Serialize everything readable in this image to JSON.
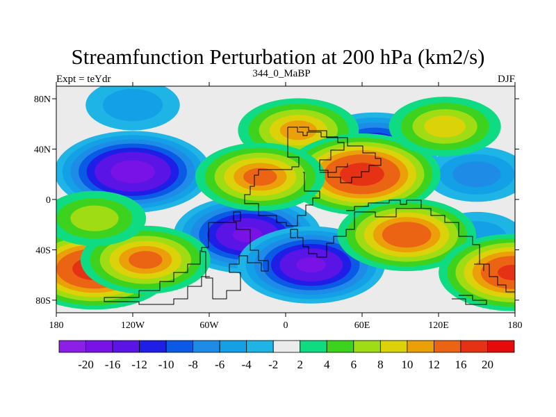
{
  "chart_data": {
    "type": "heatmap",
    "title": "Streamfunction Perturbation at 200 hPa (km2/s)",
    "left_string": "Expt = teYdr",
    "center_string": "344_0_MaBP",
    "right_string": "DJF",
    "xlim": [
      -180,
      180
    ],
    "ylim": [
      -90,
      90
    ],
    "x_ticks": [
      {
        "value": -180,
        "label": "180"
      },
      {
        "value": -120,
        "label": "120W"
      },
      {
        "value": -60,
        "label": "60W"
      },
      {
        "value": 0,
        "label": "0"
      },
      {
        "value": 60,
        "label": "60E"
      },
      {
        "value": 120,
        "label": "120E"
      },
      {
        "value": 180,
        "label": "180"
      }
    ],
    "y_ticks": [
      {
        "value": 80,
        "label": "80N"
      },
      {
        "value": 40,
        "label": "40N"
      },
      {
        "value": 0,
        "label": "0"
      },
      {
        "value": -40,
        "label": "40S"
      },
      {
        "value": -80,
        "label": "80S"
      }
    ],
    "contour_levels": [
      -20,
      -16,
      -12,
      -10,
      -8,
      -6,
      -4,
      -2,
      2,
      4,
      6,
      8,
      10,
      12,
      16,
      20
    ],
    "colorbar_labels": [
      "-20",
      "-16",
      "-12",
      "-10",
      "-8",
      "-6",
      "-4",
      "-2",
      "2",
      "4",
      "6",
      "8",
      "10",
      "12",
      "16",
      "20"
    ],
    "colorbar_colors": [
      "#8c1ee6",
      "#7812e6",
      "#5a14e6",
      "#1e1ee6",
      "#0a5ae6",
      "#1e8ce6",
      "#14a0e6",
      "#1eb4e6",
      "#ebebeb",
      "#0fdc82",
      "#3cd21e",
      "#a0dc14",
      "#dcd20a",
      "#eba00a",
      "#eb6414",
      "#e63214",
      "#e60a0a"
    ],
    "anomaly_centers": [
      {
        "lon": -120,
        "lat": 22,
        "value": -18
      },
      {
        "lon": -30,
        "lat": -28,
        "value": -16
      },
      {
        "lon": 20,
        "lat": -52,
        "value": -16
      },
      {
        "lon": 70,
        "lat": 42,
        "value": -12
      },
      {
        "lon": -120,
        "lat": 75,
        "value": -4
      },
      {
        "lon": 150,
        "lat": 20,
        "value": -6
      },
      {
        "lon": 150,
        "lat": -30,
        "value": -4
      },
      {
        "lon": 10,
        "lat": 55,
        "value": 10
      },
      {
        "lon": 60,
        "lat": 20,
        "value": 18
      },
      {
        "lon": -20,
        "lat": 18,
        "value": 12
      },
      {
        "lon": 95,
        "lat": -28,
        "value": 14
      },
      {
        "lon": -150,
        "lat": -55,
        "value": 18
      },
      {
        "lon": -110,
        "lat": -48,
        "value": 12
      },
      {
        "lon": 178,
        "lat": -58,
        "value": 16
      },
      {
        "lon": 125,
        "lat": 58,
        "value": 8
      },
      {
        "lon": -150,
        "lat": -15,
        "value": 6
      }
    ]
  }
}
